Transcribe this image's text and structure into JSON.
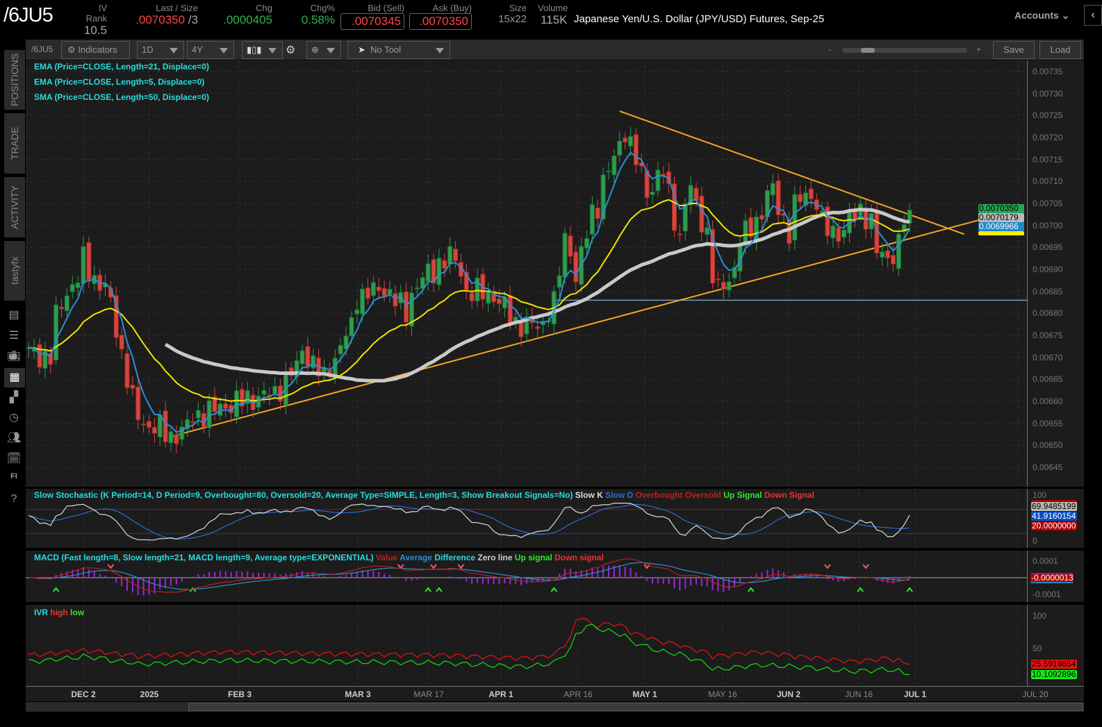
{
  "header": {
    "symbol": "/6JU5",
    "iv_rank": {
      "label": "IV Rank",
      "value": "10.5"
    },
    "last_size": {
      "label": "Last / Size",
      "last": ".0070350",
      "size": " /3"
    },
    "chg": {
      "label": "Chg",
      "value": ".0000405"
    },
    "chg_pct": {
      "label": "Chg%",
      "value": "0.58%"
    },
    "bid": {
      "label": "Bid (Sell)",
      "value": ".0070345"
    },
    "ask": {
      "label": "Ask (Buy)",
      "value": ".0070350"
    },
    "size": {
      "label": "Size",
      "value": "15x22"
    },
    "volume": {
      "label": "Volume",
      "value": "115K"
    },
    "description": "Japanese Yen/U.S. Dollar (JPY/USD) Futures, Sep-25",
    "accounts_label": "Accounts"
  },
  "sidebar": {
    "tabs": [
      "POSITIONS",
      "TRADE",
      "ACTIVITY",
      "tastyfx"
    ],
    "icons": [
      "chart-report-icon",
      "list-icon",
      "tv-icon",
      "chart-grid-icon",
      "dashboard-icon",
      "clock-icon",
      "community-icon",
      "calendar-icon",
      "fi-icon",
      "help-icon"
    ]
  },
  "toolbar": {
    "symbol": "/6JU5",
    "indicators_label": "Indicators",
    "interval": "1D",
    "range": "4Y",
    "tool": "No Tool",
    "zoom_minus": "-",
    "zoom_plus": "+",
    "save_label": "Save",
    "load_label": "Load",
    "zoom_level": 0.15
  },
  "legends": {
    "ema21": "EMA (Price=CLOSE, Length=21, Displace=0)",
    "ema5": "EMA (Price=CLOSE, Length=5, Displace=0)",
    "sma50": "SMA (Price=CLOSE, Length=50, Displace=0)",
    "stoch": "Slow Stochastic (K Period=14, D Period=9, Overbought=80, Oversold=20, Average Type=SIMPLE, Length=3, Show Breakout Signals=No)",
    "stoch_items": [
      "Slow K",
      "Slow D",
      "Overbought",
      "Oversold",
      "Up Signal",
      "Down Signal"
    ],
    "macd": "MACD (Fast length=8, Slow length=21, MACD length=9, Average type=EXPONENTIAL)",
    "macd_items": [
      "Value",
      "Average",
      "Difference",
      "Zero line",
      "Up signal",
      "Down signal"
    ],
    "ivr": "IVR",
    "ivr_items": [
      "high",
      "low"
    ]
  },
  "colors": {
    "up": "#2e9d4e",
    "down": "#d8453d",
    "ema21": "#f2e600",
    "ema5": "#2b8fd6",
    "sma50": "#c9c9c9",
    "trendline": "#f5a623",
    "support": "#6f9fc0",
    "legend": "#27dede"
  },
  "chart_data": {
    "type": "candlestick",
    "price_ticks": [
      "0.00735",
      "0.00730",
      "0.00725",
      "0.00720",
      "0.00715",
      "0.00710",
      "0.00705",
      "0.00700",
      "0.00695",
      "0.00690",
      "0.00685",
      "0.00680",
      "0.00675",
      "0.00670",
      "0.00665",
      "0.00660",
      "0.00655",
      "0.00650",
      "0.00645"
    ],
    "date_labels": [
      "DEC 2",
      "2025",
      "FEB 3",
      "MAR 3",
      "MAR 17",
      "APR 1",
      "APR 16",
      "MAY 1",
      "MAY 16",
      "JUN 2",
      "JUN 16",
      "JUL 1",
      "JUL 20"
    ],
    "close_anchors": [
      [
        "2024-11-18",
        0.00671
      ],
      [
        "2024-11-22",
        0.0067
      ],
      [
        "2024-11-27",
        0.00685
      ],
      [
        "2024-12-02",
        0.00692
      ],
      [
        "2024-12-04",
        0.00688
      ],
      [
        "2024-12-09",
        0.00682
      ],
      [
        "2024-12-13",
        0.0066
      ],
      [
        "2024-12-17",
        0.00655
      ],
      [
        "2024-12-24",
        0.00652
      ],
      [
        "2024-12-31",
        0.00657
      ],
      [
        "2025-01-10",
        0.0066
      ],
      [
        "2025-01-20",
        0.00662
      ],
      [
        "2025-01-27",
        0.00672
      ],
      [
        "2025-01-31",
        0.00665
      ],
      [
        "2025-02-04",
        0.0067
      ],
      [
        "2025-02-10",
        0.00684
      ],
      [
        "2025-02-17",
        0.00686
      ],
      [
        "2025-02-21",
        0.0068
      ],
      [
        "2025-02-26",
        0.00688
      ],
      [
        "2025-03-05",
        0.00693
      ],
      [
        "2025-03-10",
        0.00685
      ],
      [
        "2025-03-17",
        0.00684
      ],
      [
        "2025-03-21",
        0.00678
      ],
      [
        "2025-03-27",
        0.00677
      ],
      [
        "2025-04-01",
        0.00682
      ],
      [
        "2025-04-03",
        0.00697
      ],
      [
        "2025-04-07",
        0.00688
      ],
      [
        "2025-04-10",
        0.00703
      ],
      [
        "2025-04-15",
        0.00712
      ],
      [
        "2025-04-18",
        0.00722
      ],
      [
        "2025-04-21",
        0.00718
      ],
      [
        "2025-04-24",
        0.00708
      ],
      [
        "2025-04-29",
        0.00712
      ],
      [
        "2025-05-02",
        0.00697
      ],
      [
        "2025-05-06",
        0.00708
      ],
      [
        "2025-05-09",
        0.00698
      ],
      [
        "2025-05-13",
        0.00685
      ],
      [
        "2025-05-16",
        0.0069
      ],
      [
        "2025-05-21",
        0.007
      ],
      [
        "2025-05-27",
        0.00708
      ],
      [
        "2025-05-30",
        0.00698
      ],
      [
        "2025-06-04",
        0.00708
      ],
      [
        "2025-06-09",
        0.007
      ],
      [
        "2025-06-13",
        0.00698
      ],
      [
        "2025-06-18",
        0.00704
      ],
      [
        "2025-06-23",
        0.00694
      ],
      [
        "2025-06-26",
        0.00693
      ],
      [
        "2025-07-01",
        0.007035
      ]
    ],
    "trendlines": [
      {
        "from": [
          "2024-12-24",
          0.00652
        ],
        "to": [
          "2025-07-22",
          0.00702
        ]
      },
      {
        "from": [
          "2025-04-17",
          0.00726
        ],
        "to": [
          "2025-07-15",
          0.00698
        ]
      }
    ],
    "support_line": {
      "from": "2025-04-01",
      "price": 0.00683
    },
    "price_badges": [
      {
        "value": "0.0070350",
        "color": "#2aa356"
      },
      {
        "value": "0.0070179",
        "color": "#b9b9b9"
      },
      {
        "value": "0.0069966",
        "color": "#1f86c8"
      }
    ],
    "stoch": {
      "ticks": [
        "100",
        "0"
      ],
      "overbought": 80,
      "oversold": 20,
      "badges": [
        "69.9485199",
        "41.9160154",
        "20.0000000"
      ]
    },
    "macd": {
      "ticks": [
        "0.0001",
        "-0.0001"
      ],
      "badge": "-0.0000013"
    },
    "ivr": {
      "ticks": [
        "100",
        "50"
      ],
      "high_anchors": [
        [
          "2024-11-18",
          40
        ],
        [
          "2024-12-02",
          47
        ],
        [
          "2024-12-16",
          38
        ],
        [
          "2025-01-06",
          45
        ],
        [
          "2025-02-03",
          42
        ],
        [
          "2025-03-03",
          40
        ],
        [
          "2025-03-24",
          35
        ],
        [
          "2025-04-01",
          40
        ],
        [
          "2025-04-08",
          100
        ],
        [
          "2025-04-10",
          85
        ],
        [
          "2025-04-16",
          88
        ],
        [
          "2025-04-25",
          65
        ],
        [
          "2025-05-05",
          52
        ],
        [
          "2025-05-12",
          38
        ],
        [
          "2025-05-23",
          45
        ],
        [
          "2025-06-02",
          38
        ],
        [
          "2025-06-16",
          30
        ],
        [
          "2025-06-25",
          35
        ],
        [
          "2025-07-01",
          25.5919854
        ]
      ],
      "low_anchors": [
        [
          "2024-11-18",
          30
        ],
        [
          "2024-12-02",
          38
        ],
        [
          "2024-12-16",
          26
        ],
        [
          "2025-01-06",
          32
        ],
        [
          "2025-02-03",
          30
        ],
        [
          "2025-03-03",
          28
        ],
        [
          "2025-03-24",
          22
        ],
        [
          "2025-04-01",
          28
        ],
        [
          "2025-04-09",
          85
        ],
        [
          "2025-04-16",
          75
        ],
        [
          "2025-04-25",
          50
        ],
        [
          "2025-05-05",
          38
        ],
        [
          "2025-05-12",
          18
        ],
        [
          "2025-05-23",
          25
        ],
        [
          "2025-06-02",
          22
        ],
        [
          "2025-06-16",
          15
        ],
        [
          "2025-06-25",
          18
        ],
        [
          "2025-07-01",
          10.1092896
        ]
      ],
      "badges": [
        "25.5919854",
        "10.1092896"
      ]
    }
  }
}
